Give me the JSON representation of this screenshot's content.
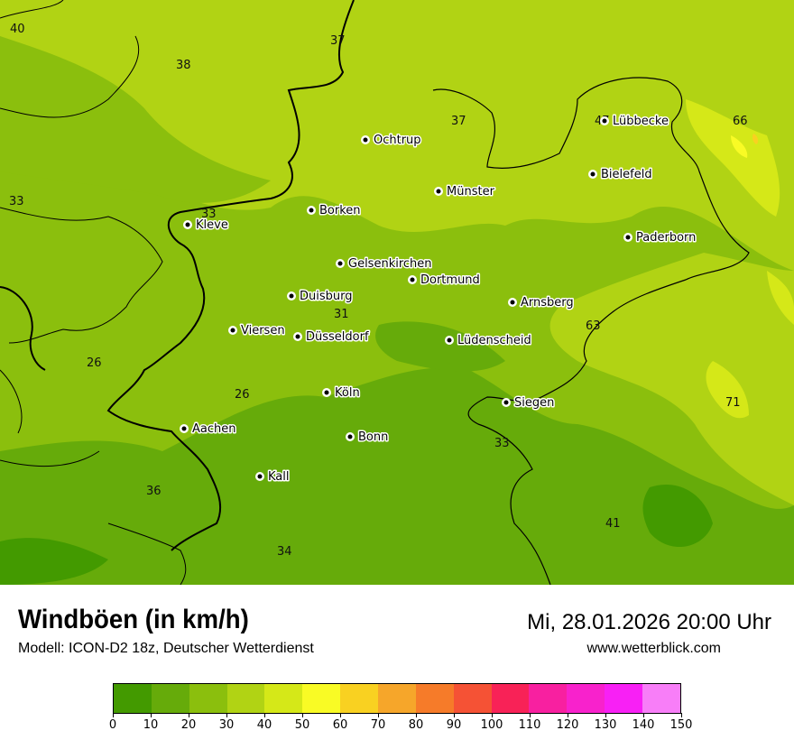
{
  "header": {
    "title": "Windböen (in km/h)",
    "subtitle": "Modell: ICON-D2 18z, Deutscher Wetterdienst",
    "datetime": "Mi, 28.01.2026 20:00 Uhr",
    "website": "www.wetterblick.com"
  },
  "legend": {
    "unit": "km/h",
    "ticks": [
      "0",
      "10",
      "20",
      "30",
      "40",
      "50",
      "60",
      "70",
      "80",
      "90",
      "100",
      "110",
      "120",
      "130",
      "140",
      "150"
    ],
    "colors": [
      "#439a00",
      "#66ab0a",
      "#8bbf0d",
      "#b1d314",
      "#d5e818",
      "#f9fb25",
      "#f9d121",
      "#f6a62a",
      "#f67b29",
      "#f55235",
      "#f82257",
      "#f820a0",
      "#f822cc",
      "#f820f5",
      "#f87ef8"
    ]
  },
  "map": {
    "cities": [
      "Ochtrup",
      "Münster",
      "Lübbecke",
      "Bielefeld",
      "Paderborn",
      "Borken",
      "Kleve",
      "Gelsenkirchen",
      "Dortmund",
      "Duisburg",
      "Arnsberg",
      "Viersen",
      "Düsseldorf",
      "Lüdenscheid",
      "Köln",
      "Siegen",
      "Aachen",
      "Bonn",
      "Kall"
    ],
    "values": [
      "40",
      "37",
      "38",
      "37",
      "47",
      "66",
      "33",
      "33",
      "31",
      "63",
      "26",
      "26",
      "71",
      "33",
      "36",
      "41",
      "34"
    ]
  }
}
